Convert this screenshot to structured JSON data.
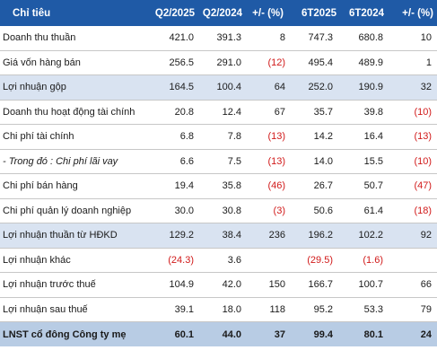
{
  "header": {
    "label": "Chỉ tiêu",
    "cols": [
      "Q2/2025",
      "Q2/2024",
      "+/- (%)",
      "6T2025",
      "6T2024",
      "+/- (%)"
    ]
  },
  "rows": [
    {
      "label": "Doanh thu thuần",
      "values": [
        "421.0",
        "391.3",
        "8",
        "747.3",
        "680.8",
        "10"
      ]
    },
    {
      "label": "Giá vốn hàng bán",
      "values": [
        "256.5",
        "291.0",
        "(12)",
        "495.4",
        "489.9",
        "1"
      ]
    },
    {
      "label": "Lợi nhuận gộp",
      "values": [
        "164.5",
        "100.4",
        "64",
        "252.0",
        "190.9",
        "32"
      ]
    },
    {
      "label": "Doanh thu hoạt động tài chính",
      "values": [
        "20.8",
        "12.4",
        "67",
        "35.7",
        "39.8",
        "(10)"
      ]
    },
    {
      "label": "Chi phí tài chính",
      "values": [
        "6.8",
        "7.8",
        "(13)",
        "14.2",
        "16.4",
        "(13)"
      ]
    },
    {
      "label": "- Trong đó : Chi phí lãi vay",
      "values": [
        "6.6",
        "7.5",
        "(13)",
        "14.0",
        "15.5",
        "(10)"
      ]
    },
    {
      "label": "Chi phí bán hàng",
      "values": [
        "19.4",
        "35.8",
        "(46)",
        "26.7",
        "50.7",
        "(47)"
      ]
    },
    {
      "label": "Chi phí quản lý doanh nghiệp",
      "values": [
        "30.0",
        "30.8",
        "(3)",
        "50.6",
        "61.4",
        "(18)"
      ]
    },
    {
      "label": "Lợi nhuận thuần từ HĐKD",
      "values": [
        "129.2",
        "38.4",
        "236",
        "196.2",
        "102.2",
        "92"
      ]
    },
    {
      "label": "Lợi nhuận khác",
      "values": [
        "(24.3)",
        "3.6",
        "",
        "(29.5)",
        "(1.6)",
        ""
      ]
    },
    {
      "label": "Lợi nhuận trước thuế",
      "values": [
        "104.9",
        "42.0",
        "150",
        "166.7",
        "100.7",
        "66"
      ]
    },
    {
      "label": "Lợi nhuận sau thuế",
      "values": [
        "39.1",
        "18.0",
        "118",
        "95.2",
        "53.3",
        "79"
      ]
    },
    {
      "label": "LNST cổ đông Công ty mẹ",
      "values": [
        "60.1",
        "44.0",
        "37",
        "99.4",
        "80.1",
        "24"
      ]
    }
  ],
  "colors": {
    "header_bg": "#1f5aa6",
    "highlight_bg": "#d9e3f1",
    "total_bg": "#b8cce4",
    "negative": "#d11a1a"
  }
}
